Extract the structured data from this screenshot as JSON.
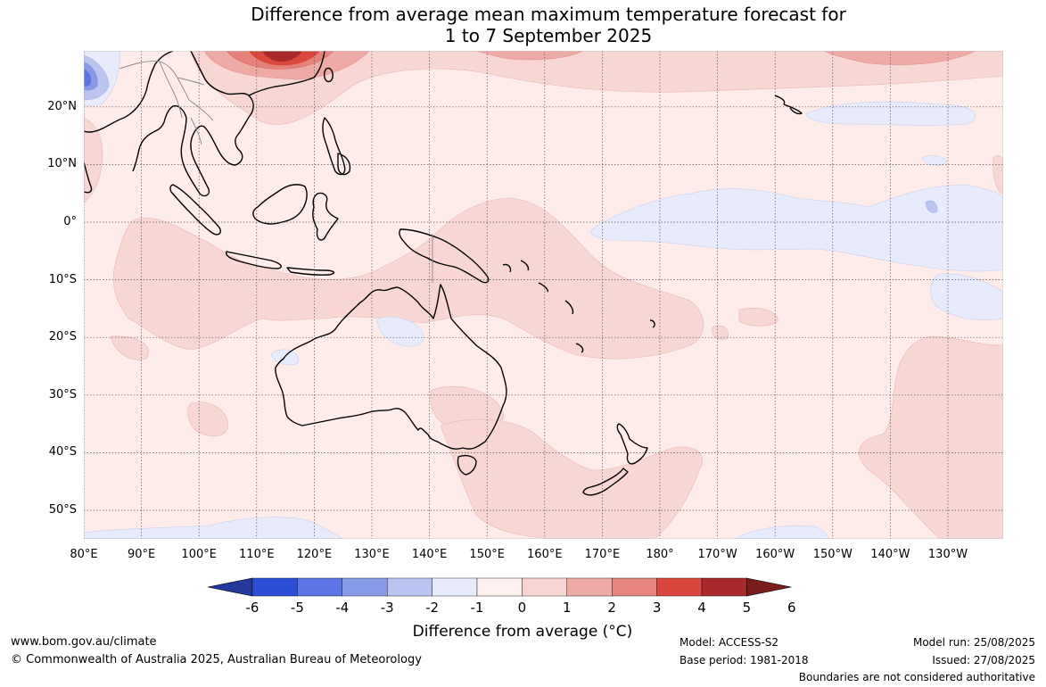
{
  "title_line1": "Difference from average mean maximum temperature forecast for",
  "title_line2": "1 to 7 September 2025",
  "lat_labels": [
    "20°N",
    "10°N",
    "0°",
    "10°S",
    "20°S",
    "30°S",
    "40°S",
    "50°S"
  ],
  "lon_labels": [
    "80°E",
    "90°E",
    "100°E",
    "110°E",
    "120°E",
    "130°E",
    "140°E",
    "150°E",
    "160°E",
    "170°E",
    "180°",
    "170°W",
    "160°W",
    "150°W",
    "140°W",
    "130°W"
  ],
  "colorbar": {
    "ticks": [
      "-6",
      "-5",
      "-4",
      "-3",
      "-2",
      "-1",
      "0",
      "1",
      "2",
      "3",
      "4",
      "5",
      "6"
    ],
    "colors": [
      "#233a9c",
      "#2d4fd6",
      "#5b76e3",
      "#8899e8",
      "#bcc5f2",
      "#e7ebfb",
      "#fdf0ef",
      "#f7d5d3",
      "#eeaba6",
      "#e5857d",
      "#d9473e",
      "#a82a2a",
      "#7a1c1c"
    ],
    "label": "Difference from average (°C)"
  },
  "footer": {
    "website": "www.bom.gov.au/climate",
    "copyright": "© Commonwealth of Australia 2025, Australian Bureau of Meteorology",
    "model": "Model: ACCESS-S2",
    "base_period": "Base period: 1981-2018",
    "model_run": "Model run: 25/08/2025",
    "issued": "Issued: 27/08/2025",
    "disclaimer": "Boundaries are not considered authoritative"
  }
}
